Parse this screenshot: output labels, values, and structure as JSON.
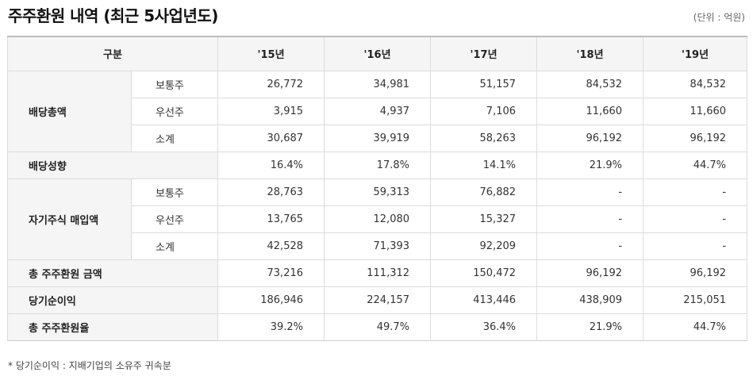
{
  "title": "주주환원 내역 (최근 5사업년도)",
  "unit": "(단위 : 억원)",
  "header": {
    "category": "구분",
    "years": [
      "'15년",
      "'16년",
      "'17년",
      "'18년",
      "'19년"
    ]
  },
  "rows": {
    "dividend_total": {
      "label": "배당총액",
      "common": {
        "label": "보통주",
        "values": [
          "26,772",
          "34,981",
          "51,157",
          "84,532",
          "84,532"
        ]
      },
      "preferred": {
        "label": "우선주",
        "values": [
          "3,915",
          "4,937",
          "7,106",
          "11,660",
          "11,660"
        ]
      },
      "subtotal": {
        "label": "소계",
        "values": [
          "30,687",
          "39,919",
          "58,263",
          "96,192",
          "96,192"
        ]
      }
    },
    "payout_ratio": {
      "label": "배당성향",
      "values": [
        "16.4%",
        "17.8%",
        "14.1%",
        "21.9%",
        "44.7%"
      ]
    },
    "buyback": {
      "label": "자기주식 매입액",
      "common": {
        "label": "보통주",
        "values": [
          "28,763",
          "59,313",
          "76,882",
          "-",
          "-"
        ]
      },
      "preferred": {
        "label": "우선주",
        "values": [
          "13,765",
          "12,080",
          "15,327",
          "-",
          "-"
        ]
      },
      "subtotal": {
        "label": "소계",
        "values": [
          "42,528",
          "71,393",
          "92,209",
          "-",
          "-"
        ]
      }
    },
    "total_return": {
      "label": "총 주주환원 금액",
      "values": [
        "73,216",
        "111,312",
        "150,472",
        "96,192",
        "96,192"
      ]
    },
    "net_income": {
      "label": "당기순이익",
      "values": [
        "186,946",
        "224,157",
        "413,446",
        "438,909",
        "215,051"
      ]
    },
    "return_ratio": {
      "label": "총 주주환원율",
      "values": [
        "39.2%",
        "49.7%",
        "36.4%",
        "21.9%",
        "44.7%"
      ]
    }
  },
  "footnote": "*  당기순이익 : 지배기업의 소유주 귀속분"
}
